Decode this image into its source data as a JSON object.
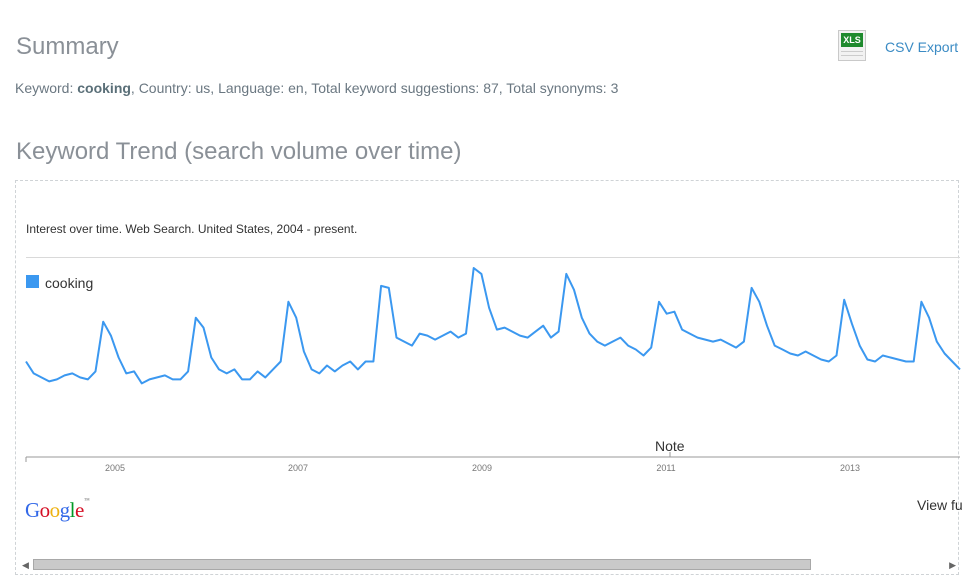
{
  "summary": {
    "title": "Summary",
    "keyword_prefix": "Keyword: ",
    "keyword": "cooking",
    "details": ", Country: us, Language: en, Total keyword suggestions: 87, Total synonyms: 3"
  },
  "export": {
    "icon": "xls-file-icon",
    "icon_label": "XLS",
    "csv_label": "CSV Export"
  },
  "trend": {
    "title": "Keyword Trend (search volume over time)",
    "subtitle": "Interest over time. Web Search. United States, 2004 - present.",
    "note_label": "Note",
    "view_full": "View fu",
    "google": [
      "G",
      "o",
      "o",
      "g",
      "l",
      "e"
    ],
    "google_colors": [
      "#3369e8",
      "#d50f25",
      "#eeb211",
      "#3369e8",
      "#009925",
      "#d50f25"
    ],
    "google_tm": "™"
  },
  "chart_data": {
    "type": "line",
    "x_ticks": [
      "2005",
      "2007",
      "2009",
      "2011",
      "2013"
    ],
    "series": [
      {
        "name": "cooking",
        "color": "#3b98f0",
        "values": [
          48,
          42,
          40,
          38,
          39,
          41,
          42,
          40,
          39,
          43,
          68,
          61,
          50,
          42,
          43,
          37,
          39,
          40,
          41,
          39,
          39,
          43,
          70,
          65,
          50,
          44,
          42,
          44,
          39,
          39,
          43,
          40,
          44,
          48,
          78,
          70,
          53,
          44,
          42,
          46,
          43,
          46,
          48,
          44,
          48,
          48,
          86,
          85,
          60,
          58,
          56,
          62,
          61,
          59,
          61,
          63,
          60,
          62,
          95,
          92,
          75,
          64,
          65,
          63,
          61,
          60,
          63,
          66,
          60,
          63,
          92,
          84,
          70,
          62,
          58,
          56,
          58,
          60,
          56,
          54,
          51,
          55,
          78,
          72,
          73,
          64,
          62,
          60,
          59,
          58,
          59,
          57,
          55,
          58,
          85,
          78,
          66,
          56,
          54,
          52,
          51,
          53,
          51,
          49,
          48,
          51,
          79,
          67,
          56,
          49,
          48,
          51,
          50,
          49,
          48,
          48,
          78,
          70,
          58,
          52,
          48,
          44
        ]
      }
    ],
    "ylim": [
      0,
      100
    ],
    "legend": "top-left"
  },
  "scrollbar": {
    "left_arrow": "◀",
    "right_arrow": "▶"
  }
}
